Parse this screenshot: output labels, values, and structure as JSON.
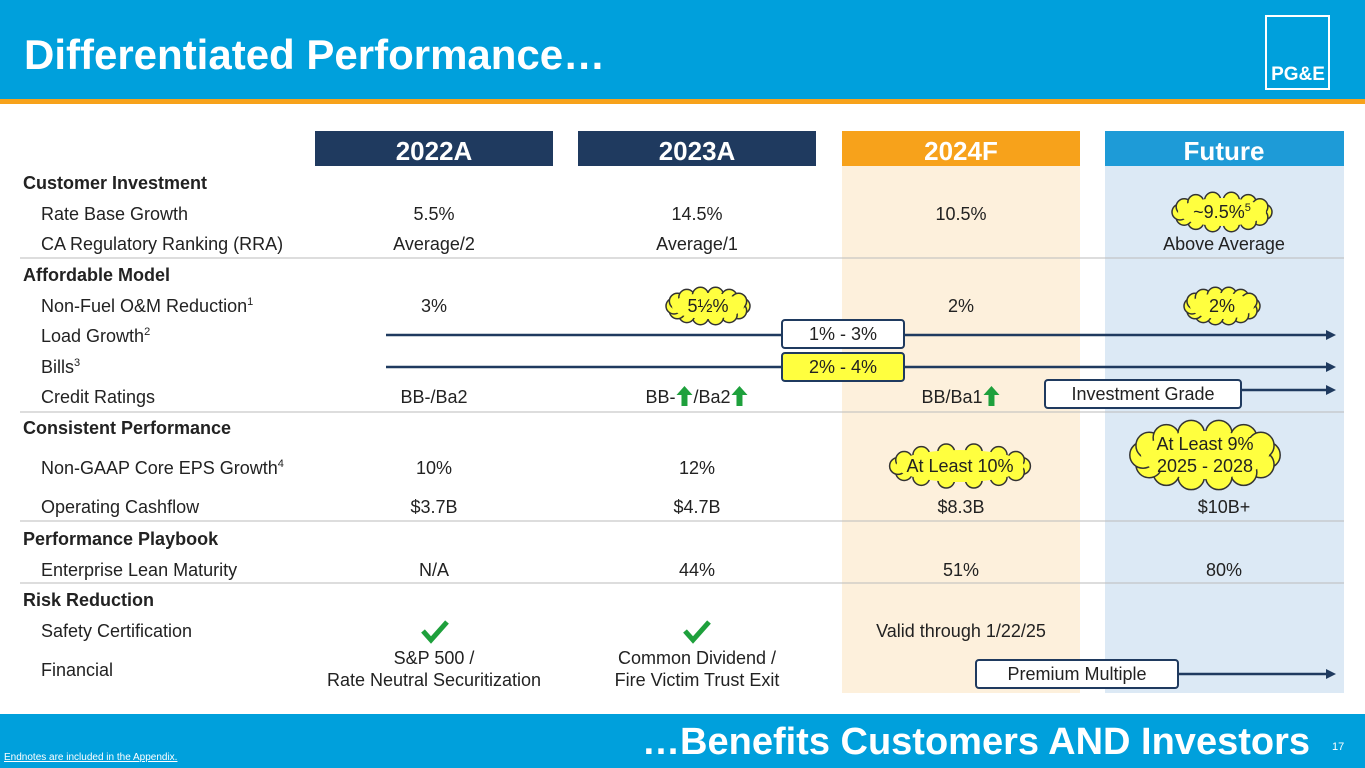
{
  "header": {
    "title": "Differentiated Performance…",
    "logo": "PG&E"
  },
  "table": {
    "columns": [
      "2022A",
      "2023A",
      "2024F",
      "Future"
    ],
    "sections": [
      {
        "title": "Customer Investment",
        "rows": [
          {
            "label": "Rate Base Growth",
            "cells": [
              "5.5%",
              "14.5%",
              "10.5%",
              null
            ]
          },
          {
            "label": "CA Regulatory Ranking (RRA)",
            "cells": [
              "Average/2",
              "Average/1",
              null,
              "Above Average"
            ]
          }
        ]
      },
      {
        "title": "Affordable Model",
        "rows": [
          {
            "label": "Non-Fuel O&M Reduction",
            "note": "1",
            "cells": [
              "3%",
              null,
              "2%",
              null
            ]
          },
          {
            "label": "Load Growth",
            "note": "2",
            "cells": [
              null,
              null,
              null,
              null
            ]
          },
          {
            "label": "Bills",
            "note": "3",
            "cells": [
              null,
              null,
              null,
              null
            ]
          },
          {
            "label": "Credit Ratings",
            "cells": [
              "BB-/Ba2",
              {
                "parts": [
                  "BB-",
                  "/Ba2"
                ]
              },
              {
                "parts": [
                  "BB/Ba1"
                ]
              },
              null
            ]
          }
        ]
      },
      {
        "title": "Consistent Performance",
        "rows": [
          {
            "label": "Non-GAAP Core EPS Growth",
            "note": "4",
            "cells": [
              "10%",
              "12%",
              null,
              null
            ]
          },
          {
            "label": "Operating Cashflow",
            "cells": [
              "$3.7B",
              "$4.7B",
              "$8.3B",
              "$10B+"
            ]
          }
        ]
      },
      {
        "title": "Performance Playbook",
        "rows": [
          {
            "label": "Enterprise Lean Maturity",
            "cells": [
              "N/A",
              "44%",
              "51%",
              "80%"
            ]
          }
        ]
      },
      {
        "title": "Risk Reduction",
        "rows": [
          {
            "label": "Safety Certification",
            "cells": [
              null,
              null,
              "Valid through 1/22/25",
              null
            ]
          },
          {
            "label": "Financial",
            "cells": [
              [
                "S&P 500 /",
                "Rate Neutral Securitization"
              ],
              [
                "Common Dividend /",
                "Fire Victim Trust Exit"
              ],
              null,
              null
            ]
          }
        ]
      }
    ]
  },
  "callouts": [
    {
      "text": "~9.5%",
      "note": "5"
    },
    {
      "text": "5½%"
    },
    {
      "text": "2%"
    },
    {
      "text": "At Least 10%"
    },
    {
      "text": [
        "At Least 9%",
        "2025 - 2028"
      ]
    }
  ],
  "arrow_labels": [
    "1% - 3%",
    "2% - 4%",
    "Investment Grade",
    "Premium Multiple"
  ],
  "footer": {
    "tagline": "…Benefits Customers AND Investors",
    "page": "17",
    "endnote": "Endnotes are included in the Appendix."
  }
}
